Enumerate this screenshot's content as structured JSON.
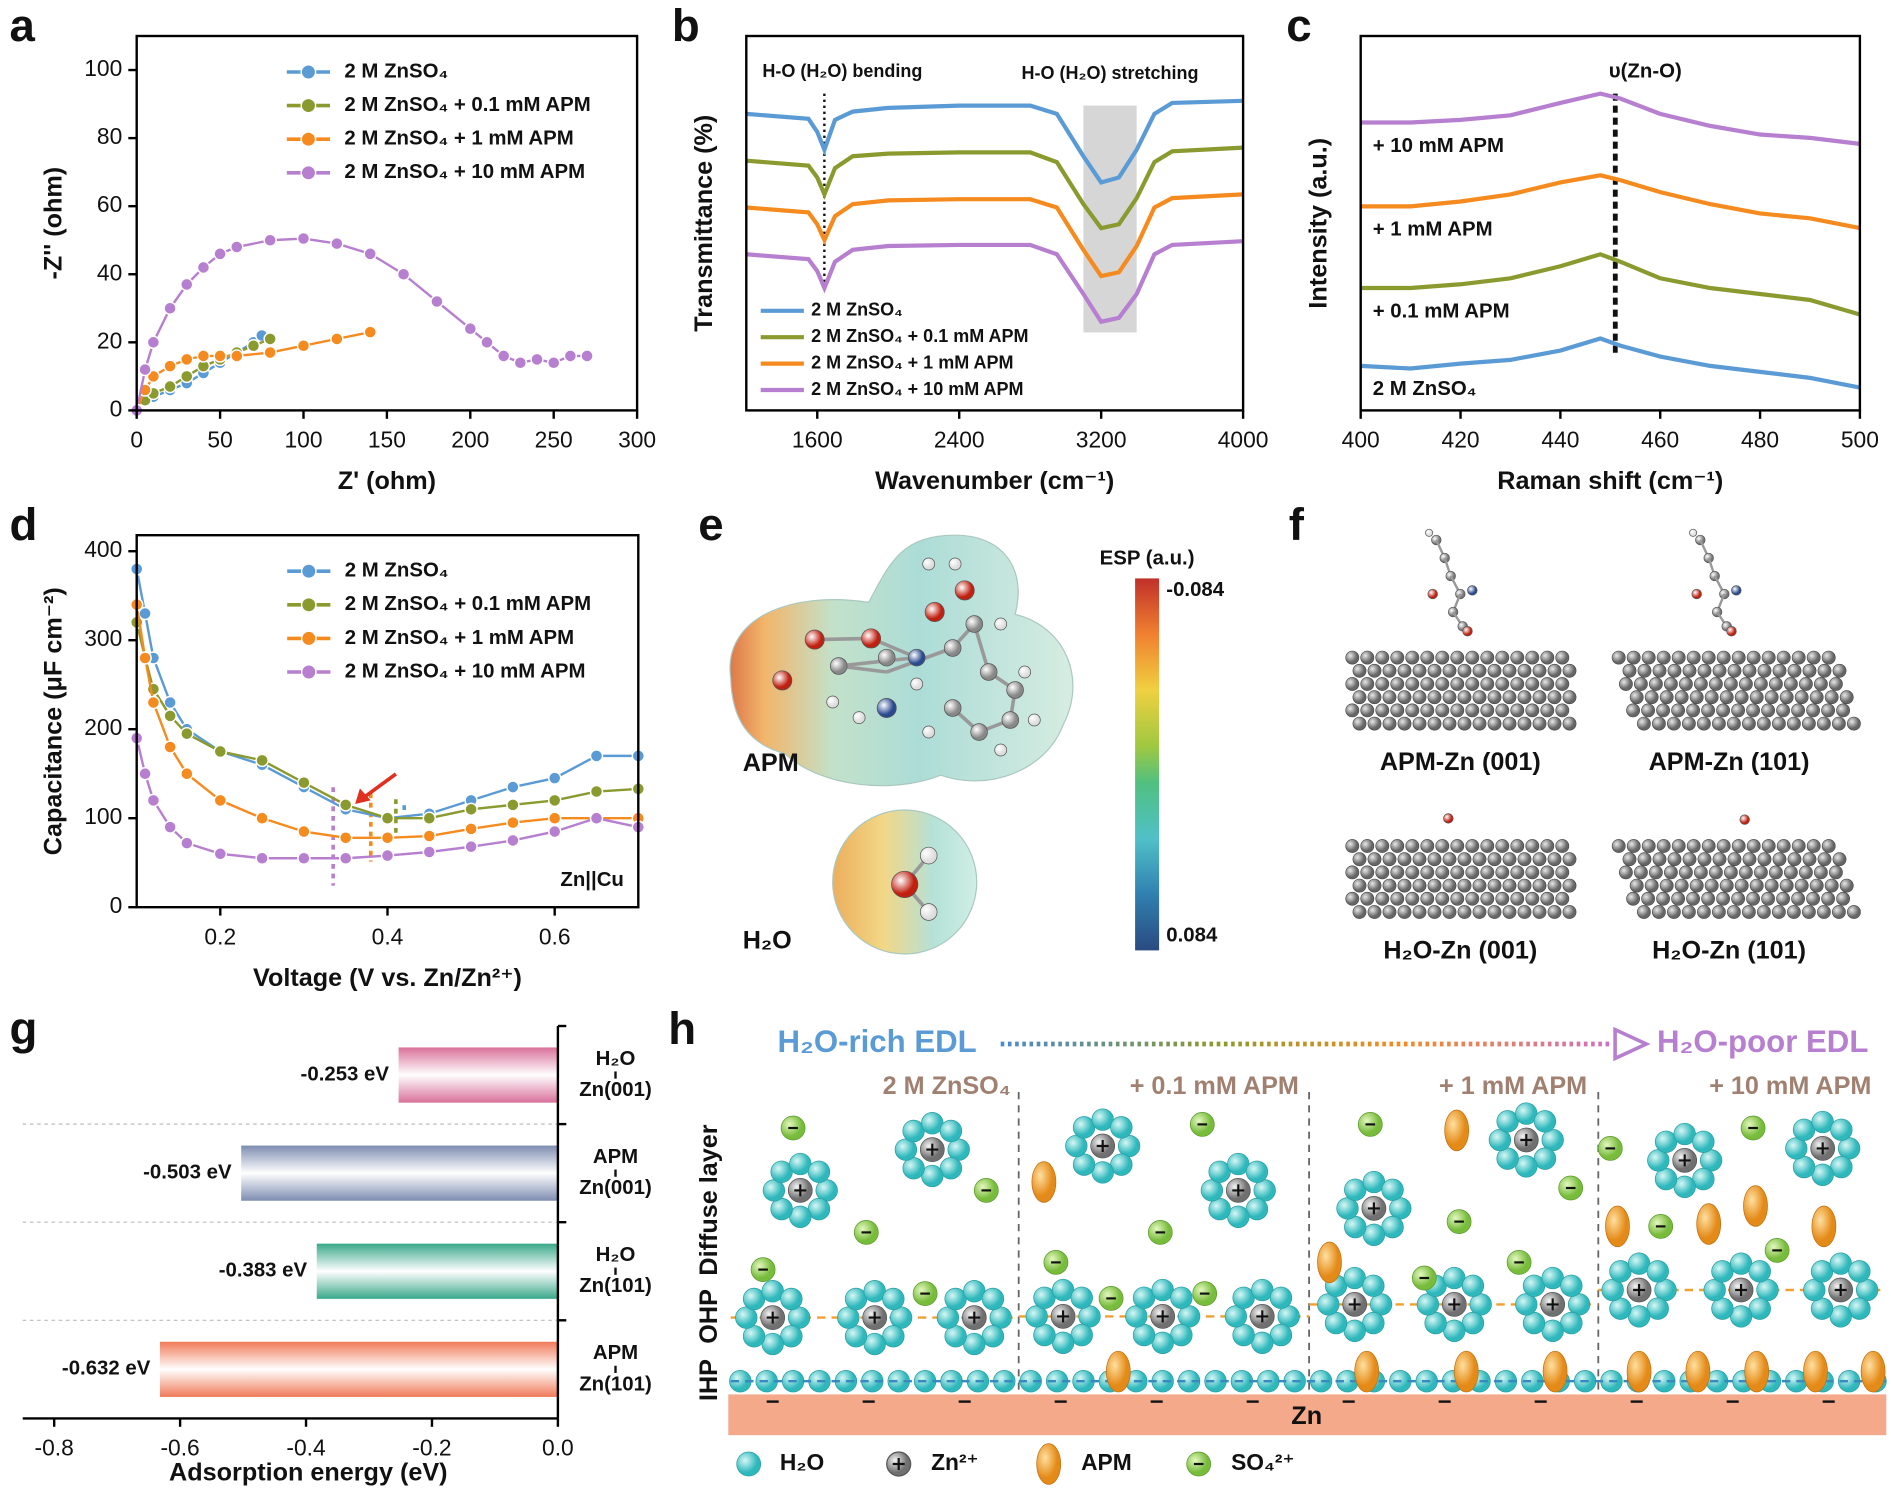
{
  "chart_data": [
    {
      "label": "a",
      "type": "line",
      "markers": true,
      "xlabel": "Z' (ohm)",
      "ylabel": "-Z'' (ohm)",
      "xlim": [
        0,
        300
      ],
      "ylim": [
        0,
        110
      ],
      "xticks": [
        0,
        50,
        100,
        150,
        200,
        250,
        300
      ],
      "yticks": [
        0,
        20,
        40,
        60,
        80,
        100
      ],
      "legend": "upper center",
      "series": [
        {
          "name": "2 M ZnSO₄",
          "color": "#5b9bd5",
          "x": [
            0,
            5,
            10,
            20,
            30,
            40,
            50,
            60,
            70,
            75
          ],
          "values": [
            0,
            3,
            4,
            6,
            8,
            11,
            14,
            17,
            20,
            22
          ]
        },
        {
          "name": "2 M ZnSO₄ + 0.1 mM APM",
          "color": "#8a9a2e",
          "x": [
            0,
            5,
            10,
            20,
            30,
            40,
            50,
            60,
            70,
            80
          ],
          "values": [
            0,
            3,
            5,
            7,
            10,
            13,
            15,
            17,
            19,
            21
          ]
        },
        {
          "name": "2 M ZnSO₄ + 1 mM APM",
          "color": "#f58a1f",
          "x": [
            0,
            5,
            10,
            20,
            30,
            40,
            50,
            60,
            80,
            100,
            120,
            140
          ],
          "values": [
            0,
            6,
            10,
            13,
            15,
            16,
            16,
            16,
            17,
            19,
            21,
            23
          ]
        },
        {
          "name": "2 M ZnSO₄ + 10 mM APM",
          "color": "#b77fcf",
          "x": [
            0,
            5,
            10,
            20,
            30,
            40,
            50,
            60,
            80,
            100,
            120,
            140,
            160,
            180,
            200,
            210,
            220,
            230,
            240,
            250,
            260,
            270
          ],
          "values": [
            0,
            12,
            20,
            30,
            37,
            42,
            46,
            48,
            50,
            50.5,
            49,
            46,
            40,
            32,
            24,
            20,
            16,
            14,
            15,
            14,
            16,
            16
          ]
        }
      ]
    },
    {
      "label": "b",
      "type": "line",
      "xlabel": "Wavenumber (cm⁻¹)",
      "ylabel": "Transmittance (%)",
      "xlim": [
        1200,
        4000
      ],
      "ylim": [
        0,
        100
      ],
      "xticks": [
        1600,
        2400,
        3200,
        4000
      ],
      "legend": "lower left",
      "x": [
        1200,
        1550,
        1600,
        1640,
        1700,
        1800,
        2000,
        2400,
        2800,
        2950,
        3100,
        3200,
        3300,
        3400,
        3500,
        3600,
        4000
      ],
      "annotations": [
        {
          "text": "H-O (H₂O) bending",
          "x": 1640
        },
        {
          "text": "H-O (H₂O) stretching",
          "x": [
            3100,
            3400
          ]
        }
      ],
      "series": [
        {
          "name": "2 M ZnSO₄",
          "color": "#5b9bd5",
          "values": [
            79.2,
            77.9,
            74.4,
            69.6,
            77.6,
            79.8,
            80.8,
            81.4,
            81.4,
            79.2,
            67.9,
            60.9,
            62.2,
            69.6,
            79.2,
            82.1,
            82.7
          ]
        },
        {
          "name": "2 M ZnSO₄ + 0.1 mM APM",
          "color": "#8a9a2e",
          "values": [
            66.7,
            65.4,
            62.2,
            57.7,
            64.7,
            67.9,
            68.6,
            68.9,
            68.9,
            66.3,
            55.1,
            48.7,
            49.7,
            56.7,
            66.3,
            69.2,
            70.2
          ]
        },
        {
          "name": "2 M ZnSO₄ + 1 mM APM",
          "color": "#f58a1f",
          "values": [
            54.2,
            52.9,
            49.7,
            45.5,
            51.9,
            55.1,
            56.1,
            56.4,
            56.4,
            54.2,
            42.9,
            35.9,
            36.9,
            43.9,
            54.2,
            56.7,
            57.7
          ]
        },
        {
          "name": "2 M ZnSO₄ + 10 mM APM",
          "color": "#b77fcf",
          "values": [
            41.7,
            40.4,
            37.2,
            32.7,
            39.7,
            42.9,
            43.9,
            44.2,
            44.2,
            41.7,
            31.1,
            23.7,
            24.7,
            31.1,
            41.7,
            44.2,
            45.2
          ]
        }
      ]
    },
    {
      "label": "c",
      "type": "line",
      "xlabel": "Raman shift (cm⁻¹)",
      "ylabel": "Intensity (a.u.)",
      "xlim": [
        400,
        500
      ],
      "ylim": [
        0,
        100
      ],
      "xticks": [
        400,
        420,
        440,
        460,
        480,
        500
      ],
      "legend": "inline",
      "x": [
        400,
        410,
        420,
        430,
        440,
        448,
        452,
        460,
        470,
        480,
        490,
        500
      ],
      "annotations": [
        {
          "text": "υ(Zn-O)",
          "x": 451
        }
      ],
      "series": [
        {
          "name": "2 M ZnSO₄",
          "color": "#5b9bd5",
          "values": [
            11.9,
            11.2,
            12.5,
            13.5,
            16.0,
            19.2,
            17.3,
            14.4,
            11.9,
            10.3,
            8.7,
            6.1
          ]
        },
        {
          "name": "+ 0.1 mM APM",
          "color": "#8a9a2e",
          "values": [
            32.7,
            32.7,
            33.7,
            35.3,
            38.5,
            41.7,
            39.7,
            35.3,
            32.7,
            31.1,
            29.5,
            25.6
          ]
        },
        {
          "name": "+ 1 mM APM",
          "color": "#f58a1f",
          "values": [
            54.5,
            54.5,
            55.8,
            57.7,
            60.9,
            62.8,
            61.5,
            58.3,
            55.1,
            52.6,
            51.3,
            48.7
          ]
        },
        {
          "name": "+ 10 mM APM",
          "color": "#b77fcf",
          "values": [
            76.9,
            76.9,
            77.6,
            78.8,
            82.1,
            84.6,
            83.3,
            79.2,
            76.0,
            73.7,
            72.8,
            71.2
          ]
        }
      ]
    },
    {
      "label": "d",
      "type": "line",
      "markers": true,
      "xlabel": "Voltage (V vs. Zn/Zn²⁺)",
      "ylabel": "Capacitance (μF cm⁻²)",
      "xlim": [
        0.1,
        0.7
      ],
      "ylim": [
        0,
        418
      ],
      "xticks": [
        0.2,
        0.4,
        0.6
      ],
      "yticks": [
        0,
        100,
        200,
        300,
        400
      ],
      "legend": "upper center",
      "note": "Zn||Cu",
      "x": [
        0.1,
        0.11,
        0.12,
        0.14,
        0.16,
        0.2,
        0.25,
        0.3,
        0.35,
        0.4,
        0.45,
        0.5,
        0.55,
        0.6,
        0.65,
        0.7
      ],
      "vlines": [
        {
          "x": 0.335,
          "color": "#b77fcf"
        },
        {
          "x": 0.38,
          "color": "#f58a1f"
        },
        {
          "x": 0.41,
          "color": "#8a9a2e"
        },
        {
          "x": 0.42,
          "color": "#5b9bd5"
        }
      ],
      "series": [
        {
          "name": "2 M ZnSO₄",
          "color": "#5b9bd5",
          "values": [
            380,
            330,
            280,
            230,
            200,
            175,
            160,
            135,
            110,
            100,
            105,
            120,
            135,
            145,
            170,
            170
          ]
        },
        {
          "name": "2 M ZnSO₄ + 0.1 mM APM",
          "color": "#8a9a2e",
          "values": [
            320,
            280,
            245,
            215,
            195,
            175,
            165,
            140,
            115,
            100,
            100,
            110,
            115,
            120,
            130,
            133
          ]
        },
        {
          "name": "2 M ZnSO₄ + 1 mM APM",
          "color": "#f58a1f",
          "values": [
            340,
            280,
            230,
            180,
            150,
            120,
            100,
            85,
            78,
            78,
            80,
            88,
            95,
            100,
            100,
            100
          ]
        },
        {
          "name": "2 M ZnSO₄ + 10 mM APM",
          "color": "#b77fcf",
          "values": [
            190,
            150,
            120,
            90,
            72,
            60,
            55,
            55,
            55,
            58,
            62,
            68,
            75,
            85,
            100,
            90
          ]
        }
      ]
    },
    {
      "label": "g",
      "type": "hbar",
      "xlabel": "Adsorption energy (eV)",
      "xlim": [
        -0.85,
        0
      ],
      "xticks": [
        -0.8,
        -0.6,
        -0.4,
        -0.2,
        {
          "value": 0,
          "label": "0.0"
        }
      ],
      "categories": [
        [
          "H₂O",
          "Zn(001)"
        ],
        [
          "APM",
          "Zn(001)"
        ],
        [
          "H₂O",
          "Zn(101)"
        ],
        [
          "APM",
          "Zn(101)"
        ]
      ],
      "values": [
        -0.253,
        -0.503,
        -0.383,
        -0.632
      ],
      "value_labels": [
        "-0.253 eV",
        "-0.503 eV",
        "-0.383 eV",
        "-0.632 eV"
      ],
      "colors": [
        "#d9709a",
        "#7d8cb0",
        "#3aa88a",
        "#f07a5a"
      ]
    }
  ],
  "panel_e": {
    "label": "e",
    "molecules": [
      "APM",
      "H₂O"
    ],
    "colorbar": {
      "title": "ESP (a.u.)",
      "top": "-0.084",
      "bottom": "0.084"
    }
  },
  "panel_f": {
    "label": "f",
    "structures": [
      "APM-Zn (001)",
      "APM-Zn (101)",
      "H₂O-Zn (001)",
      "H₂O-Zn (101)"
    ]
  },
  "panel_h": {
    "label": "h",
    "from": "H₂O-rich EDL",
    "to": "H₂O-poor EDL",
    "conditions": [
      "2 M ZnSO₄",
      "+ 0.1 mM APM",
      "+ 1 mM APM",
      "+ 10 mM APM"
    ],
    "layers": [
      "Diffuse layer",
      "OHP",
      "IHP"
    ],
    "electrode": "Zn",
    "legend": [
      "H₂O",
      "Zn²⁺",
      "APM",
      "SO₄²⁺"
    ]
  }
}
